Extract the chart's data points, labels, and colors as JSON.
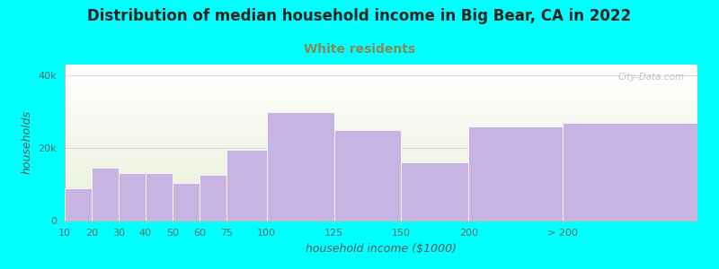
{
  "title": "Distribution of median household income in Big Bear, CA in 2022",
  "subtitle": "White residents",
  "xlabel": "household income ($1000)",
  "ylabel": "households",
  "watermark": "City-Data.com",
  "bar_labels": [
    "10",
    "20",
    "30",
    "40",
    "50",
    "60",
    "75",
    "100",
    "125",
    "150",
    "200",
    "> 200"
  ],
  "bar_heights": [
    9000,
    14500,
    13000,
    13000,
    10500,
    12500,
    19500,
    30000,
    25000,
    16000,
    26000,
    27000
  ],
  "bar_widths": [
    1,
    1,
    1,
    1,
    1,
    1,
    1.5,
    2.5,
    2.5,
    2.5,
    3.5,
    5
  ],
  "bar_positions": [
    0,
    1,
    2,
    3,
    4,
    5,
    6,
    7.5,
    10,
    12.5,
    15,
    18.5
  ],
  "bar_color": "#c8b4e3",
  "bar_edgecolor": "#ffffff",
  "ylim": [
    0,
    43000
  ],
  "yticks": [
    0,
    20000,
    40000
  ],
  "background_color": "#00ffff",
  "plot_bg_top_color": "#e8f0d8",
  "plot_bg_bottom_color": "#ffffff",
  "title_fontsize": 12,
  "subtitle_fontsize": 10,
  "subtitle_color": "#888855",
  "axis_label_fontsize": 9,
  "tick_fontsize": 8,
  "tick_color": "#666666",
  "title_color": "#222222",
  "xlabel_color": "#555555",
  "ylabel_color": "#555555"
}
